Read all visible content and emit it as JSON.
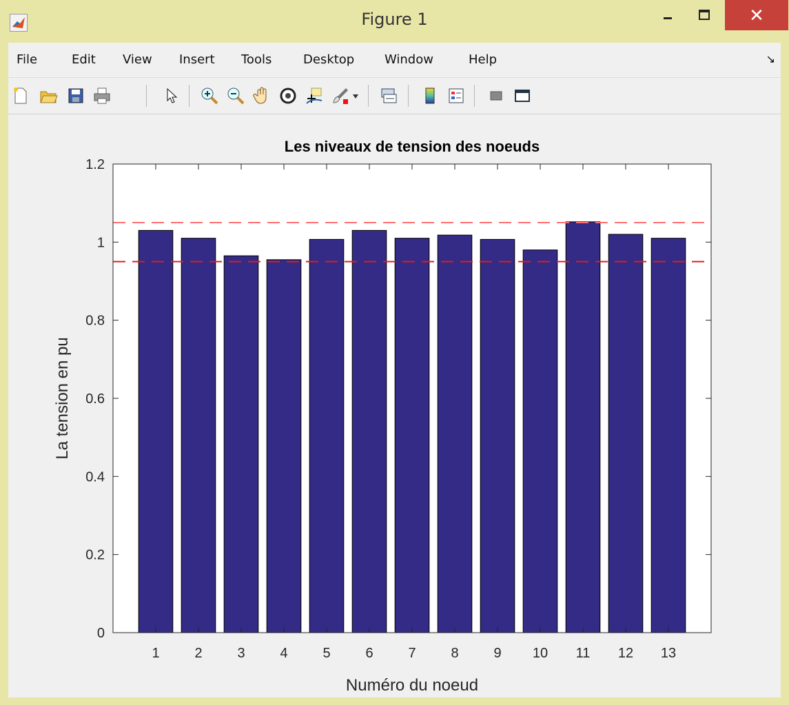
{
  "window": {
    "title": "Figure 1",
    "close_glyph": "✕"
  },
  "menu": [
    "File",
    "Edit",
    "View",
    "Insert",
    "Tools",
    "Desktop",
    "Window",
    "Help"
  ],
  "toolbar": {
    "icons": [
      "new-figure-icon",
      "open-file-icon",
      "save-icon",
      "print-icon",
      "pointer-icon",
      "zoom-in-icon",
      "zoom-out-icon",
      "pan-hand-icon",
      "rotate-3d-icon",
      "data-cursor-icon",
      "brush-icon",
      "link-plot-icon",
      "colorbar-icon",
      "legend-icon",
      "hide-plot-tools-icon",
      "show-plot-tools-icon"
    ]
  },
  "chart_data": {
    "type": "bar",
    "title": "Les niveaux de tension des noeuds",
    "xlabel": "Numéro du noeud",
    "ylabel": "La tension en pu",
    "categories": [
      "1",
      "2",
      "3",
      "4",
      "5",
      "6",
      "7",
      "8",
      "9",
      "10",
      "11",
      "12",
      "13"
    ],
    "values": [
      1.03,
      1.01,
      0.965,
      0.955,
      1.007,
      1.03,
      1.01,
      1.018,
      1.007,
      0.98,
      1.052,
      1.02,
      1.01
    ],
    "ylim": [
      0,
      1.2
    ],
    "yticks": [
      "0",
      "0.2",
      "0.4",
      "0.6",
      "0.8",
      "1",
      "1.2"
    ],
    "reference_lines": [
      {
        "y": 1.05,
        "color": "#ff6e6e",
        "style": "dashed"
      },
      {
        "y": 0.95,
        "color": "#e41a1a",
        "style": "dashed"
      }
    ],
    "bar_color": "#332b85",
    "grid": false
  }
}
